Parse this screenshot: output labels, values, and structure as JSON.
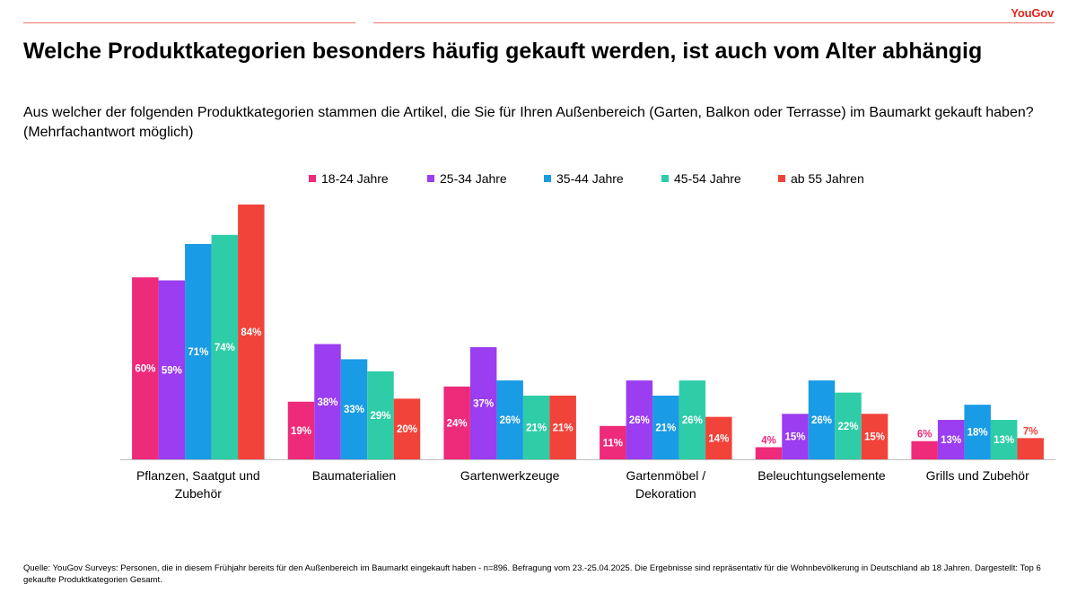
{
  "brand": "YouGov",
  "title": "Welche Produktkategorien besonders häufig gekauft werden, ist auch vom Alter abhängig",
  "subtitle": "Aus welcher der folgenden Produktkategorien stammen die Artikel, die Sie für Ihren Außenbereich (Garten, Balkon oder Terrasse) im Baumarkt gekauft haben? (Mehrfachantwort möglich)",
  "footnote": "Quelle: YouGov Surveys: Personen, die in diesem Frühjahr bereits für den Außenbereich im Baumarkt eingekauft haben - n=896. Befragung vom 23.-25.04.2025. Die Ergebnisse sind repräsentativ für die Wohnbevölkerung in Deutschland ab 18 Jahren. Dargestellt: Top 6 gekaufte Produktkategorien Gesamt.",
  "chart_data": {
    "type": "bar",
    "title": "Welche Produktkategorien besonders häufig gekauft werden, ist auch vom Alter abhängig",
    "xlabel": "",
    "ylabel": "",
    "ylim": [
      0,
      84
    ],
    "grid": false,
    "legend_position": "top",
    "value_suffix": "%",
    "categories": [
      "Pflanzen, Saatgut und Zubehör",
      "Baumaterialien",
      "Gartenwerkzeuge",
      "Gartenmöbel / Dekoration",
      "Beleuchtungselemente",
      "Grills und Zubehör"
    ],
    "series": [
      {
        "name": "18-24 Jahre",
        "color": "#ee2a7b",
        "values": [
          60,
          19,
          24,
          11,
          4,
          6
        ]
      },
      {
        "name": "25-34 Jahre",
        "color": "#9b3df0",
        "values": [
          59,
          38,
          37,
          26,
          15,
          13
        ]
      },
      {
        "name": "35-44 Jahre",
        "color": "#1a9be6",
        "values": [
          71,
          33,
          26,
          21,
          26,
          18
        ]
      },
      {
        "name": "45-54 Jahre",
        "color": "#2ecda7",
        "values": [
          74,
          29,
          21,
          26,
          22,
          13
        ]
      },
      {
        "name": "ab 55 Jahren",
        "color": "#f2433a",
        "values": [
          84,
          20,
          21,
          14,
          15,
          7
        ]
      }
    ]
  }
}
